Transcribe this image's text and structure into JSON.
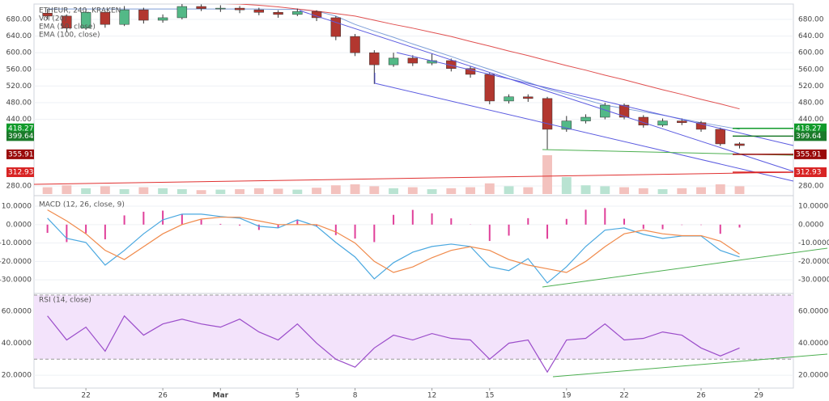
{
  "chart_data": [
    {
      "type": "candlestick",
      "title": "ETHEUR, 240, KRAKEN",
      "x": [
        20,
        21,
        22,
        23,
        24,
        25,
        26,
        27,
        28,
        29,
        30,
        31,
        32,
        33,
        34,
        35,
        36,
        37,
        38,
        39,
        40,
        41,
        42,
        43,
        44,
        45,
        46,
        47,
        48,
        49,
        50,
        51,
        52,
        53,
        54,
        55,
        56
      ],
      "open": [
        695,
        688,
        659,
        697,
        668,
        703,
        678,
        684,
        711,
        706,
        707,
        703,
        697,
        692,
        699,
        684,
        639,
        600,
        571,
        587,
        575,
        581,
        562,
        548,
        484,
        494,
        490,
        416,
        436,
        445,
        474,
        445,
        426,
        436,
        432,
        416,
        381
      ],
      "high": [
        705,
        692,
        705,
        700,
        712,
        708,
        692,
        718,
        716,
        714,
        712,
        708,
        702,
        706,
        702,
        688,
        645,
        606,
        600,
        594,
        598,
        586,
        568,
        552,
        500,
        500,
        494,
        448,
        452,
        480,
        478,
        450,
        442,
        442,
        436,
        420,
        385
      ],
      "low": [
        680,
        650,
        655,
        660,
        664,
        670,
        672,
        680,
        700,
        698,
        695,
        690,
        684,
        688,
        676,
        630,
        592,
        525,
        566,
        568,
        570,
        555,
        540,
        476,
        478,
        482,
        368,
        410,
        430,
        440,
        440,
        420,
        422,
        426,
        410,
        376,
        370
      ],
      "close": [
        688,
        659,
        697,
        668,
        703,
        678,
        684,
        711,
        706,
        707,
        703,
        697,
        692,
        699,
        684,
        639,
        600,
        571,
        587,
        575,
        581,
        562,
        548,
        484,
        494,
        490,
        416,
        436,
        445,
        474,
        445,
        426,
        436,
        432,
        416,
        381,
        377
      ],
      "up_color": "#53b987",
      "down_color": "#b2372f",
      "volume": {
        "name": "Vol (20)",
        "values": [
          14,
          18,
          12,
          16,
          10,
          14,
          12,
          10,
          8,
          9,
          10,
          12,
          11,
          9,
          13,
          18,
          20,
          16,
          12,
          14,
          10,
          12,
          14,
          22,
          16,
          14,
          80,
          35,
          18,
          16,
          14,
          12,
          10,
          12,
          14,
          20,
          16
        ],
        "vlim": [
          0,
          100
        ],
        "up_color": "#b9e3d2",
        "down_color": "#f3c2be"
      },
      "series": [
        {
          "name": "EMA (50, close)",
          "color": "#7e9fd8",
          "values": [
            705,
            705,
            705,
            705,
            705,
            705,
            705,
            705,
            705,
            705,
            705,
            705,
            704,
            704,
            700,
            688,
            668,
            652,
            637,
            621,
            606,
            591,
            575,
            560,
            544,
            529,
            513,
            500,
            487,
            474,
            466,
            458,
            450,
            441,
            432,
            424,
            416
          ]
        },
        {
          "name": "EMA (100, close)",
          "color": "#e05050",
          "values": [
            722,
            722,
            722,
            721,
            721,
            721,
            720,
            720,
            719,
            718,
            717,
            714,
            710,
            705,
            700,
            694,
            688,
            678,
            668,
            659,
            649,
            639,
            627,
            616,
            604,
            593,
            581,
            569,
            558,
            546,
            535,
            523,
            511,
            500,
            488,
            477,
            465
          ]
        }
      ],
      "price_lines": [
        {
          "value": 418.27,
          "color": "#109a2a"
        },
        {
          "value": 399.64,
          "color": "#1b7a2a"
        },
        {
          "value": 355.91,
          "color": "#9a0a0a"
        },
        {
          "value": 312.93,
          "color": "#d82424"
        }
      ],
      "xlim": [
        19.3,
        58.8
      ],
      "ylim": [
        260.5,
        716.9
      ],
      "yticks": [
        {
          "value": 280,
          "label": "280.00"
        },
        {
          "value": 440,
          "label": "440.00"
        },
        {
          "value": 480,
          "label": "480.00"
        },
        {
          "value": 520,
          "label": "520.00"
        },
        {
          "value": 560,
          "label": "560.00"
        },
        {
          "value": 600,
          "label": "600.00"
        },
        {
          "value": 640,
          "label": "640.00"
        },
        {
          "value": 680,
          "label": "680.00"
        }
      ]
    },
    {
      "type": "macd",
      "title": "MACD (12, 26, close, 9)",
      "x": [
        20,
        21,
        22,
        23,
        24,
        25,
        26,
        27,
        28,
        29,
        30,
        31,
        32,
        33,
        34,
        35,
        36,
        37,
        38,
        39,
        40,
        41,
        42,
        43,
        44,
        45,
        46,
        47,
        48,
        49,
        50,
        51,
        52,
        53,
        54,
        55,
        56
      ],
      "series": [
        {
          "color": "#4aa8e0",
          "values": [
            3.5,
            -7.5,
            -9.7,
            -22,
            -14,
            -5,
            2.6,
            5.7,
            5.7,
            4.4,
            3.5,
            -0.9,
            -1.8,
            2.6,
            -0.9,
            -9.7,
            -17.6,
            -29.5,
            -20.7,
            -15,
            -11.9,
            -10.6,
            -11.9,
            -22.9,
            -25,
            -18.5,
            -31.7,
            -22.9,
            -11.9,
            -3,
            -1.8,
            -5.3,
            -7.5,
            -6.2,
            -6.2,
            -14,
            -17.6
          ]
        },
        {
          "color": "#f08a4b",
          "values": [
            8,
            2,
            -5,
            -14,
            -19,
            -12,
            -5,
            0,
            3,
            4,
            4,
            2,
            0,
            0,
            0,
            -4,
            -10,
            -20,
            -26,
            -23,
            -18,
            -14,
            -12,
            -14,
            -19,
            -22,
            -24,
            -26,
            -20,
            -12,
            -5,
            -3,
            -5,
            -6,
            -6,
            -9,
            -16
          ]
        }
      ],
      "histogram": {
        "color": "#e0409a",
        "values": [
          -4.5,
          -9.5,
          -4.7,
          -8,
          5,
          7,
          7.6,
          5.7,
          2.7,
          0.4,
          -0.5,
          -2.9,
          -1.8,
          2.6,
          -0.9,
          -5.7,
          -7.6,
          -9.5,
          5.3,
          8,
          6.1,
          3.4,
          0.1,
          -8.9,
          -6,
          3.5,
          -7.7,
          3.1,
          8.1,
          9,
          3.2,
          -2.3,
          -2.5,
          -0.2,
          -0.2,
          -5,
          -1.6
        ]
      },
      "xlim": [
        19.3,
        58.8
      ],
      "ylim": [
        -37,
        15.3
      ],
      "yticks": [
        {
          "value": -30,
          "label": "-30.0000"
        },
        {
          "value": -20,
          "label": "-20.0000"
        },
        {
          "value": -10,
          "label": "-10.0000"
        },
        {
          "value": 0,
          "label": "0.0000"
        },
        {
          "value": 10,
          "label": "10.0000"
        }
      ]
    },
    {
      "type": "rsi",
      "title": "RSI (14, close)",
      "color": "#9b4dca",
      "band": [
        30,
        70
      ],
      "band_color": "#f3e3fb",
      "x": [
        20,
        21,
        22,
        23,
        24,
        25,
        26,
        27,
        28,
        29,
        30,
        31,
        32,
        33,
        34,
        35,
        36,
        37,
        38,
        39,
        40,
        41,
        42,
        43,
        44,
        45,
        46,
        47,
        48,
        49,
        50,
        51,
        52,
        53,
        54,
        55,
        56
      ],
      "values": [
        57,
        42,
        50,
        35,
        57,
        45,
        52,
        55,
        52,
        50,
        55,
        47,
        42,
        52,
        40,
        30,
        25,
        37,
        45,
        42,
        46,
        43,
        42,
        30,
        40,
        42,
        22,
        42,
        43,
        52,
        42,
        43,
        47,
        45,
        37,
        32,
        37
      ],
      "xlim": [
        19.3,
        58.8
      ],
      "ylim": [
        12,
        70.5
      ],
      "yticks": [
        {
          "value": 20,
          "label": "20.0000"
        },
        {
          "value": 40,
          "label": "40.0000"
        },
        {
          "value": 60,
          "label": "60.0000"
        }
      ],
      "xticks": [
        22,
        26,
        {
          "value": 29,
          "label": "Mar"
        },
        {
          "value": 33,
          "label": "5"
        },
        {
          "value": 36,
          "label": "8"
        },
        {
          "value": 40,
          "label": "12"
        },
        {
          "value": 43,
          "label": "15"
        },
        {
          "value": 47,
          "label": "19"
        },
        {
          "value": 50,
          "label": "22"
        },
        {
          "value": 54,
          "label": "26"
        },
        {
          "value": 57,
          "label": "29"
        }
      ]
    }
  ]
}
